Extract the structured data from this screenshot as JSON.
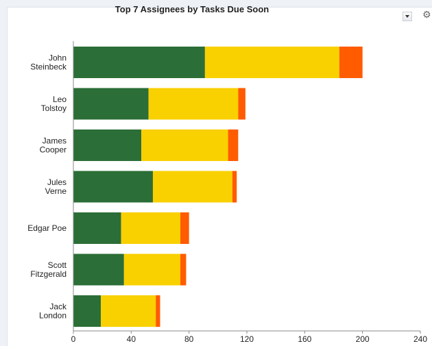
{
  "chart_data": {
    "type": "bar",
    "orientation": "horizontal",
    "stacked": true,
    "title": "Top 7 Assignees by Tasks Due Soon",
    "categories": [
      [
        "John",
        "Steinbeck"
      ],
      [
        "Leo",
        "Tolstoy"
      ],
      [
        "James",
        "Cooper"
      ],
      [
        "Jules",
        "Verne"
      ],
      [
        "Edgar Poe"
      ],
      [
        "Scott",
        "Fitzgerald"
      ],
      [
        "Jack",
        "London"
      ]
    ],
    "series": [
      {
        "color": "#2b6e37",
        "values": [
          91,
          52,
          47,
          55,
          33,
          35,
          19
        ]
      },
      {
        "color": "#f9d000",
        "values": [
          93,
          62,
          60,
          55,
          41,
          39,
          38
        ]
      },
      {
        "color": "#ff5b00",
        "values": [
          16,
          5,
          7,
          3,
          6,
          4,
          3
        ]
      }
    ],
    "xlim": [
      0,
      240
    ],
    "xticks": [
      "0",
      "40",
      "80",
      "120",
      "160",
      "200",
      "240"
    ],
    "grid": false
  },
  "controls": {
    "dropdown_icon": "chevron-down-icon",
    "settings_icon": "gear-icon"
  }
}
